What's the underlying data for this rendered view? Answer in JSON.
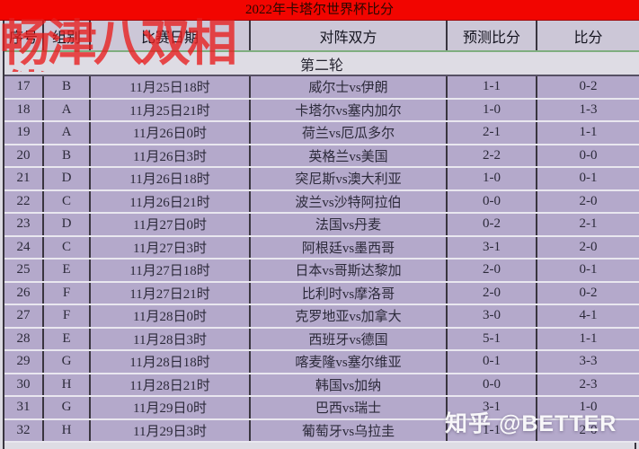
{
  "chart_data": {
    "type": "table",
    "title": "2022年卡塔尔世界杯比分",
    "section": "第二轮",
    "columns": [
      "序号",
      "组别",
      "比赛日期",
      "对阵双方",
      "预测比分",
      "比分"
    ],
    "rows": [
      {
        "no": "17",
        "group": "B",
        "date": "11月25日18时",
        "match": "威尔士vs伊朗",
        "predicted": "1-1",
        "score": "0-2"
      },
      {
        "no": "18",
        "group": "A",
        "date": "11月25日21时",
        "match": "卡塔尔vs塞内加尔",
        "predicted": "1-0",
        "score": "1-3"
      },
      {
        "no": "19",
        "group": "A",
        "date": "11月26日0时",
        "match": "荷兰vs厄瓜多尔",
        "predicted": "2-1",
        "score": "1-1"
      },
      {
        "no": "20",
        "group": "B",
        "date": "11月26日3时",
        "match": "英格兰vs美国",
        "predicted": "2-2",
        "score": "0-0"
      },
      {
        "no": "21",
        "group": "D",
        "date": "11月26日18时",
        "match": "突尼斯vs澳大利亚",
        "predicted": "1-0",
        "score": "0-1"
      },
      {
        "no": "22",
        "group": "C",
        "date": "11月26日21时",
        "match": "波兰vs沙特阿拉伯",
        "predicted": "0-0",
        "score": "2-0"
      },
      {
        "no": "23",
        "group": "D",
        "date": "11月27日0时",
        "match": "法国vs丹麦",
        "predicted": "0-2",
        "score": "2-1"
      },
      {
        "no": "24",
        "group": "C",
        "date": "11月27日3时",
        "match": "阿根廷vs墨西哥",
        "predicted": "3-1",
        "score": "2-0"
      },
      {
        "no": "25",
        "group": "E",
        "date": "11月27日18时",
        "match": "日本vs哥斯达黎加",
        "predicted": "2-0",
        "score": "0-1"
      },
      {
        "no": "26",
        "group": "F",
        "date": "11月27日21时",
        "match": "比利时vs摩洛哥",
        "predicted": "2-0",
        "score": "0-2"
      },
      {
        "no": "27",
        "group": "F",
        "date": "11月28日0时",
        "match": "克罗地亚vs加拿大",
        "predicted": "3-0",
        "score": "4-1"
      },
      {
        "no": "28",
        "group": "E",
        "date": "11月28日3时",
        "match": "西班牙vs德国",
        "predicted": "5-1",
        "score": "1-1"
      },
      {
        "no": "29",
        "group": "G",
        "date": "11月28日18时",
        "match": "喀麦隆vs塞尔维亚",
        "predicted": "0-1",
        "score": "3-3"
      },
      {
        "no": "30",
        "group": "H",
        "date": "11月28日21时",
        "match": "韩国vs加纳",
        "predicted": "0-0",
        "score": "2-3"
      },
      {
        "no": "31",
        "group": "G",
        "date": "11月29日0时",
        "match": "巴西vs瑞士",
        "predicted": "3-1",
        "score": "1-0"
      },
      {
        "no": "32",
        "group": "H",
        "date": "11月29日3时",
        "match": "葡萄牙vs乌拉圭",
        "predicted": "1-1",
        "score": "2-0"
      }
    ]
  },
  "watermarks": {
    "red_text": "畅津八双相伴",
    "zhihu": "知乎 @BETTER"
  },
  "colors": {
    "banner": "#f20500",
    "header_bg": "#ccc7d7",
    "section_bg": "#dedce4",
    "row_bg": "#b4a9cb",
    "predicted": "#d6476d",
    "score_text": "#2c2a3a"
  }
}
